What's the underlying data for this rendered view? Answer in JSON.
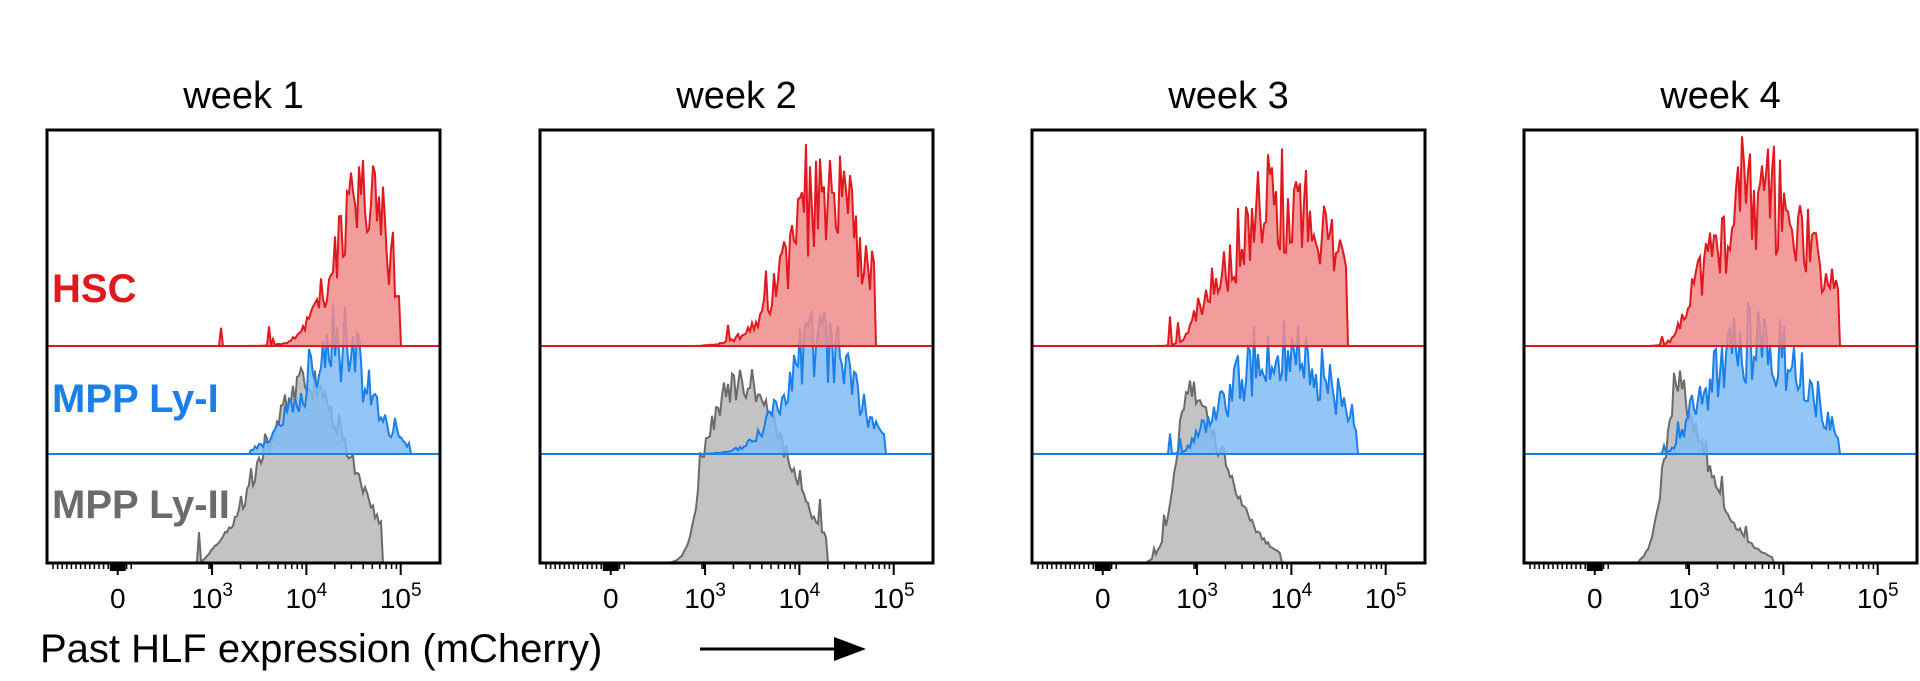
{
  "figure": {
    "xlabel": "Past HLF expression (mCherry)",
    "row_labels": [
      "HSC",
      "MPP Ly-I",
      "MPP Ly-II"
    ],
    "tick_labels": [
      {
        "base": "0",
        "exp": ""
      },
      {
        "base": "10",
        "exp": "3"
      },
      {
        "base": "10",
        "exp": "4"
      },
      {
        "base": "10",
        "exp": "5"
      }
    ]
  },
  "colors": {
    "HSC": "#e0191f",
    "HSC_fill": "#f08b8b",
    "MPP Ly-I": "#1a7fe8",
    "MPP Ly-I_fill": "#80bbf5",
    "MPP Ly-II": "#6b6b6b",
    "MPP Ly-II_fill": "#bdbdbd",
    "axis": "#000000"
  },
  "chart_data": [
    {
      "type": "area",
      "title": "week 1",
      "xlabel": "Past HLF expression (mCherry)",
      "x_scale": "biexponential",
      "x_ticks": [
        "0",
        "10^3",
        "10^4",
        "10^5"
      ],
      "series": [
        {
          "name": "HSC",
          "peak_log10": 4.6,
          "spread": 0.3,
          "range_log10": [
            2.4,
            5.0
          ]
        },
        {
          "name": "MPP Ly-I",
          "peak_log10": 4.3,
          "spread": 0.35,
          "range_log10": [
            3.4,
            5.1
          ]
        },
        {
          "name": "MPP Ly-II",
          "peak_log10": 4.0,
          "spread": 0.45,
          "range_log10": [
            2.4,
            4.8
          ]
        }
      ]
    },
    {
      "type": "area",
      "title": "week 2",
      "xlabel": "Past HLF expression (mCherry)",
      "x_scale": "biexponential",
      "x_ticks": [
        "0",
        "10^3",
        "10^4",
        "10^5"
      ],
      "series": [
        {
          "name": "HSC",
          "peak_log10": 4.3,
          "spread": 0.4,
          "range_log10": [
            2.5,
            4.8
          ]
        },
        {
          "name": "MPP Ly-I",
          "peak_log10": 4.2,
          "spread": 0.35,
          "range_log10": [
            3.0,
            4.9
          ]
        },
        {
          "name": "MPP Ly-II",
          "peak_log10": 3.4,
          "spread": 0.45,
          "range_log10": [
            1.8,
            4.3
          ]
        }
      ]
    },
    {
      "type": "area",
      "title": "week 3",
      "xlabel": "Past HLF expression (mCherry)",
      "x_scale": "biexponential",
      "x_ticks": [
        "0",
        "10^3",
        "10^4",
        "10^5"
      ],
      "series": [
        {
          "name": "HSC",
          "peak_log10": 3.9,
          "spread": 0.55,
          "range_log10": [
            1.7,
            4.6
          ]
        },
        {
          "name": "MPP Ly-I",
          "peak_log10": 3.9,
          "spread": 0.5,
          "range_log10": [
            2.0,
            4.7
          ]
        },
        {
          "name": "MPP Ly-II",
          "peak_log10": 2.8,
          "spread": 0.45,
          "range_log10": [
            1.4,
            3.9
          ]
        }
      ]
    },
    {
      "type": "area",
      "title": "week 4",
      "xlabel": "Past HLF expression (mCherry)",
      "x_scale": "biexponential",
      "x_ticks": [
        "0",
        "10^3",
        "10^4",
        "10^5"
      ],
      "series": [
        {
          "name": "HSC",
          "peak_log10": 3.8,
          "spread": 0.55,
          "range_log10": [
            1.8,
            4.6
          ]
        },
        {
          "name": "MPP Ly-I",
          "peak_log10": 3.7,
          "spread": 0.5,
          "range_log10": [
            2.0,
            4.6
          ]
        },
        {
          "name": "MPP Ly-II",
          "peak_log10": 2.7,
          "spread": 0.45,
          "range_log10": [
            1.4,
            3.9
          ]
        }
      ]
    }
  ]
}
